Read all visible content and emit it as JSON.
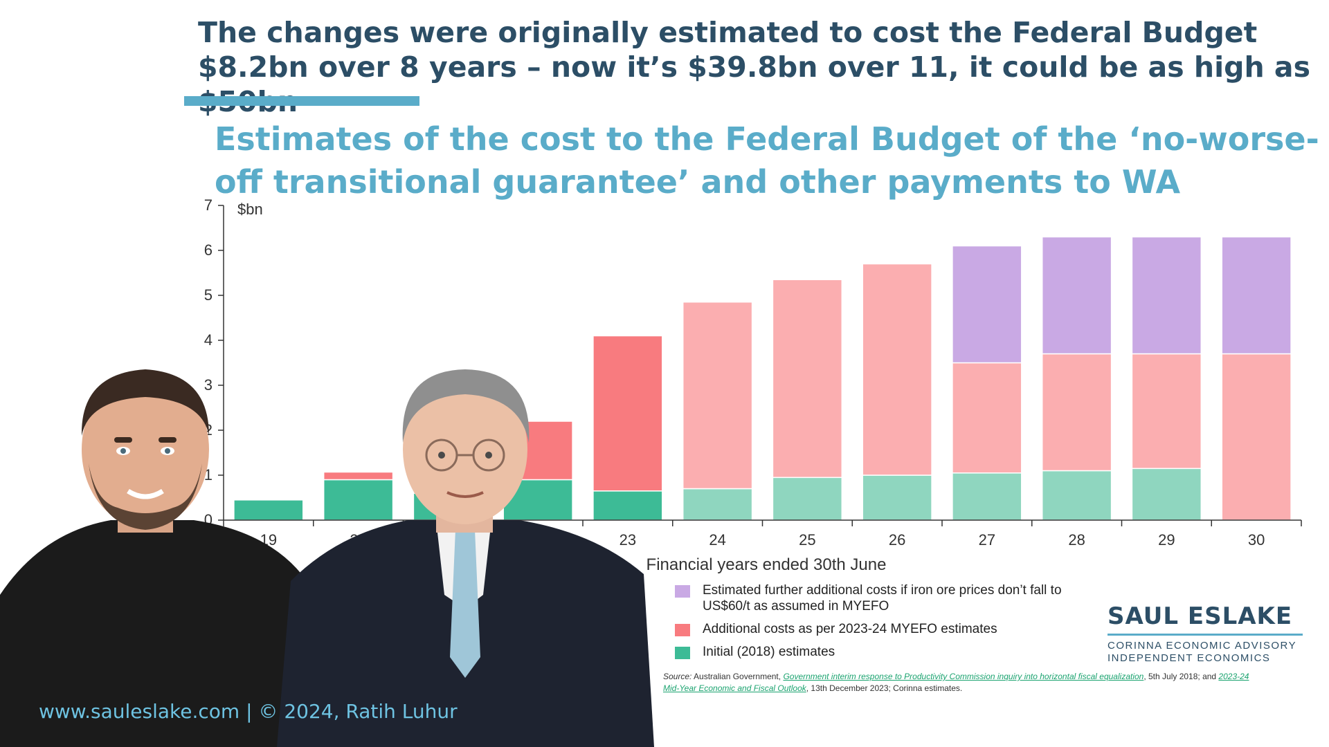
{
  "headline": "The changes were originally estimated to cost the Federal Budget $8.2bn over 8 years – now it’s $39.8bn over 11, it could be as high as $50bn",
  "chart_title": "Estimates of the cost to the Federal Budget of the ‘no-worse-off transitional guarantee’ and other payments to WA",
  "chart_data": {
    "type": "bar",
    "stacked": true,
    "categories": [
      "19",
      "20",
      "21",
      "22",
      "23",
      "24",
      "25",
      "26",
      "27",
      "28",
      "29",
      "30"
    ],
    "series": [
      {
        "name": "Initial (2018) estimates",
        "values": [
          0.45,
          0.9,
          0.6,
          0.9,
          0.65,
          0.7,
          0.95,
          1.0,
          1.05,
          1.1,
          1.15,
          0
        ],
        "colors": [
          "#3dbb96",
          "#3dbb96",
          "#3dbb96",
          "#3dbb96",
          "#3dbb96",
          "#8fd6bf",
          "#8fd6bf",
          "#8fd6bf",
          "#8fd6bf",
          "#8fd6bf",
          "#8fd6bf",
          "#8fd6bf"
        ]
      },
      {
        "name": "Additional costs as per 2023-24 MYEFO estimates",
        "values": [
          0,
          0.17,
          0.95,
          1.3,
          3.45,
          4.15,
          4.4,
          4.7,
          2.45,
          2.6,
          2.55,
          3.7
        ],
        "colors": [
          "#f87b7f",
          "#f87b7f",
          "#f87b7f",
          "#f87b7f",
          "#f87b7f",
          "#fbaeb0",
          "#fbaeb0",
          "#fbaeb0",
          "#fbaeb0",
          "#fbaeb0",
          "#fbaeb0",
          "#fbaeb0"
        ]
      },
      {
        "name": "Estimated further additional costs if iron ore prices don’t fall to US$60/t as assumed in MYEFO",
        "values": [
          0,
          0,
          0,
          0,
          0,
          0,
          0,
          0,
          2.6,
          2.6,
          2.6,
          2.6
        ],
        "colors": [
          "#c9a9e4",
          "#c9a9e4",
          "#c9a9e4",
          "#c9a9e4",
          "#c9a9e4",
          "#c9a9e4",
          "#c9a9e4",
          "#c9a9e4",
          "#c9a9e4",
          "#c9a9e4",
          "#c9a9e4",
          "#c9a9e4"
        ]
      }
    ],
    "ylim": [
      0,
      7
    ],
    "yticks": [
      "0",
      "1",
      "2",
      "3",
      "4",
      "5",
      "6",
      "7"
    ],
    "ylabel": "$bn",
    "xlabel": "Financial years ended 30th June",
    "grid": false,
    "legend_position": "bottom-right"
  },
  "legend": [
    {
      "label": "Estimated further additional costs if iron ore prices don’t fall to US$60/t as assumed in MYEFO",
      "color": "#c9a9e4"
    },
    {
      "label": "Additional costs as per 2023-24 MYEFO estimates",
      "color": "#f87b7f"
    },
    {
      "label": "Initial (2018) estimates",
      "color": "#3dbb96"
    }
  ],
  "source": {
    "lead": "Source:",
    "text_1": " Australian Government, ",
    "link_1": "Government interim response to Productivity Commission inquiry into horizontal fiscal equalization",
    "text_2": ", 5th July 2018; and ",
    "link_2": "2023-24 Mid-Year Economic and Fiscal Outlook",
    "text_3": ", 13th December 2023; Corinna estimates."
  },
  "brand": {
    "name": "SAUL ESLAKE",
    "line1": "CORINNA ECONOMIC ADVISORY",
    "line2": "INDEPENDENT ECONOMICS"
  },
  "footer": "www.sauleslake.com | © 2024, Ratih Luhur"
}
